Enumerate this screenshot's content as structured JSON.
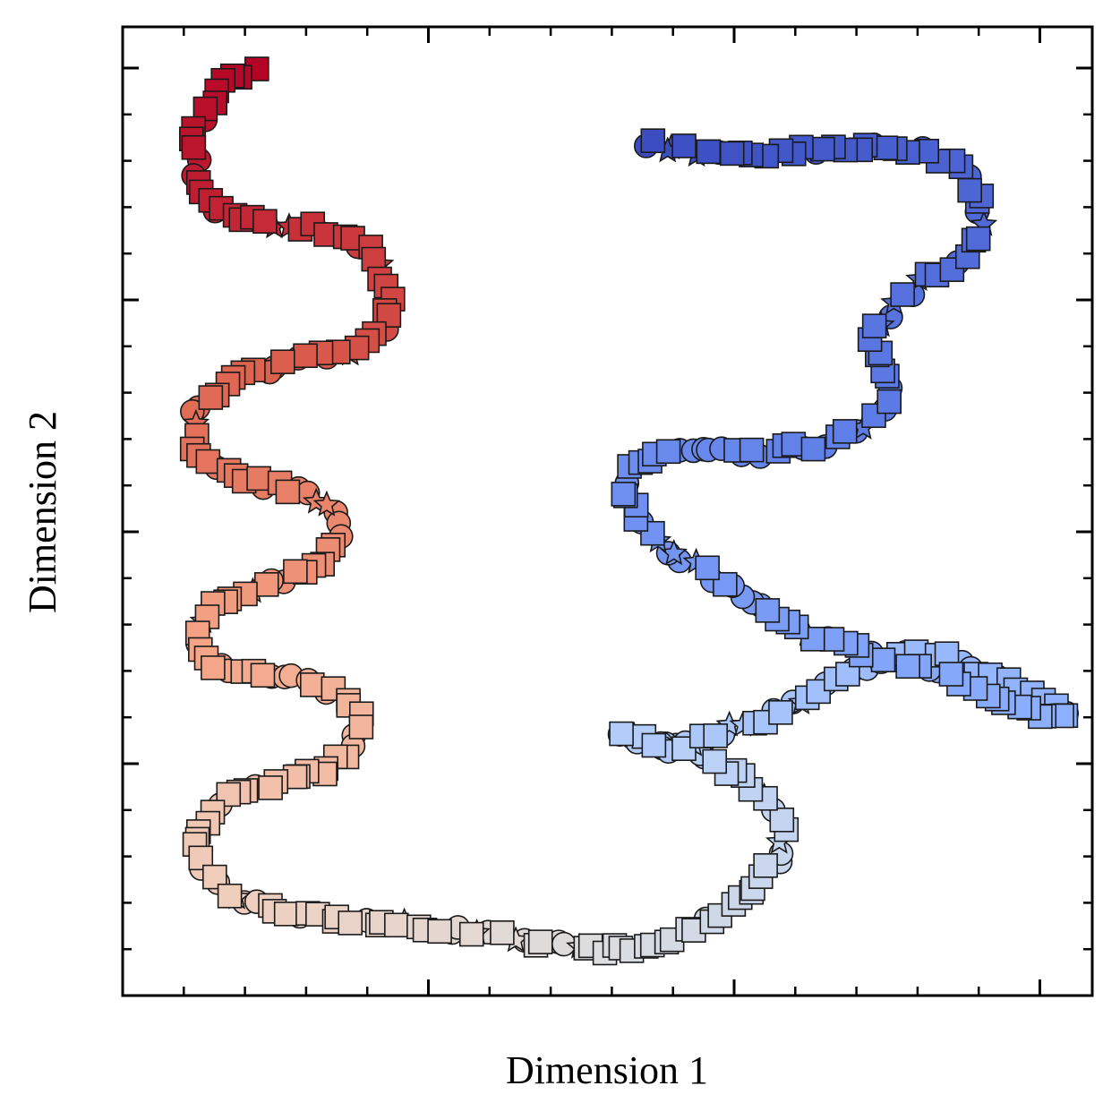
{
  "chart_data": {
    "type": "scatter",
    "title": "",
    "xlabel": "Dimension 1",
    "ylabel": "Dimension 2",
    "xlim": [
      0,
      1
    ],
    "ylim": [
      0,
      1
    ],
    "grid": false,
    "legend": "none",
    "tick_labels": false,
    "colormap": "coolwarm",
    "colormap_endpoints": {
      "low": "#3a4cc0",
      "mid": "#dddddd",
      "high": "#b40426"
    },
    "marker_shapes": [
      "square",
      "circle",
      "star"
    ],
    "edge_color": "#1a1a1a",
    "arm_left": {
      "description_order": "top to bottom",
      "color_range": [
        1.0,
        0.5
      ],
      "path": [
        [
          0.135,
          0.956
        ],
        [
          0.11,
          0.945
        ],
        [
          0.085,
          0.918
        ],
        [
          0.074,
          0.885
        ],
        [
          0.078,
          0.84
        ],
        [
          0.095,
          0.811
        ],
        [
          0.134,
          0.8
        ],
        [
          0.185,
          0.795
        ],
        [
          0.232,
          0.785
        ],
        [
          0.262,
          0.76
        ],
        [
          0.275,
          0.725
        ],
        [
          0.272,
          0.69
        ],
        [
          0.252,
          0.67
        ],
        [
          0.213,
          0.663
        ],
        [
          0.165,
          0.65
        ],
        [
          0.11,
          0.635
        ],
        [
          0.075,
          0.603
        ],
        [
          0.074,
          0.565
        ],
        [
          0.1,
          0.54
        ],
        [
          0.152,
          0.528
        ],
        [
          0.195,
          0.515
        ],
        [
          0.22,
          0.495
        ],
        [
          0.222,
          0.465
        ],
        [
          0.2,
          0.44
        ],
        [
          0.15,
          0.425
        ],
        [
          0.102,
          0.41
        ],
        [
          0.075,
          0.38
        ],
        [
          0.085,
          0.34
        ],
        [
          0.14,
          0.33
        ],
        [
          0.19,
          0.325
        ],
        [
          0.225,
          0.31
        ],
        [
          0.245,
          0.285
        ],
        [
          0.24,
          0.255
        ],
        [
          0.205,
          0.23
        ],
        [
          0.15,
          0.215
        ],
        [
          0.098,
          0.2
        ],
        [
          0.075,
          0.165
        ],
        [
          0.086,
          0.13
        ],
        [
          0.11,
          0.105
        ],
        [
          0.15,
          0.09
        ],
        [
          0.205,
          0.082
        ],
        [
          0.26,
          0.075
        ],
        [
          0.32,
          0.07
        ],
        [
          0.38,
          0.062
        ],
        [
          0.435,
          0.055
        ],
        [
          0.483,
          0.047
        ]
      ]
    },
    "arm_right": {
      "description_order": "bottom to top",
      "color_range": [
        0.5,
        0.0
      ],
      "path": [
        [
          0.483,
          0.047
        ],
        [
          0.53,
          0.05
        ],
        [
          0.57,
          0.06
        ],
        [
          0.61,
          0.08
        ],
        [
          0.65,
          0.11
        ],
        [
          0.675,
          0.14
        ],
        [
          0.682,
          0.175
        ],
        [
          0.665,
          0.205
        ],
        [
          0.635,
          0.228
        ],
        [
          0.59,
          0.248
        ],
        [
          0.55,
          0.265
        ],
        [
          0.51,
          0.268
        ],
        [
          0.565,
          0.253
        ],
        [
          0.61,
          0.27
        ],
        [
          0.64,
          0.28
        ],
        [
          0.68,
          0.293
        ],
        [
          0.724,
          0.322
        ],
        [
          0.76,
          0.34
        ],
        [
          0.808,
          0.35
        ],
        [
          0.845,
          0.355
        ],
        [
          0.87,
          0.338
        ],
        [
          0.897,
          0.33
        ],
        [
          0.92,
          0.32
        ],
        [
          0.948,
          0.308
        ],
        [
          0.98,
          0.292
        ],
        [
          0.957,
          0.287
        ],
        [
          0.9,
          0.31
        ],
        [
          0.845,
          0.33
        ],
        [
          0.8,
          0.345
        ],
        [
          0.745,
          0.36
        ],
        [
          0.7,
          0.378
        ],
        [
          0.67,
          0.395
        ],
        [
          0.635,
          0.415
        ],
        [
          0.6,
          0.438
        ],
        [
          0.555,
          0.46
        ],
        [
          0.53,
          0.498
        ],
        [
          0.515,
          0.52
        ],
        [
          0.525,
          0.546
        ],
        [
          0.56,
          0.56
        ],
        [
          0.615,
          0.56
        ],
        [
          0.665,
          0.56
        ],
        [
          0.725,
          0.57
        ],
        [
          0.77,
          0.59
        ],
        [
          0.79,
          0.615
        ],
        [
          0.785,
          0.65
        ],
        [
          0.773,
          0.68
        ],
        [
          0.795,
          0.71
        ],
        [
          0.83,
          0.74
        ],
        [
          0.868,
          0.765
        ],
        [
          0.887,
          0.79
        ],
        [
          0.883,
          0.83
        ],
        [
          0.85,
          0.862
        ],
        [
          0.81,
          0.875
        ],
        [
          0.74,
          0.875
        ],
        [
          0.68,
          0.87
        ],
        [
          0.62,
          0.868
        ],
        [
          0.57,
          0.875
        ],
        [
          0.532,
          0.88
        ]
      ]
    }
  }
}
